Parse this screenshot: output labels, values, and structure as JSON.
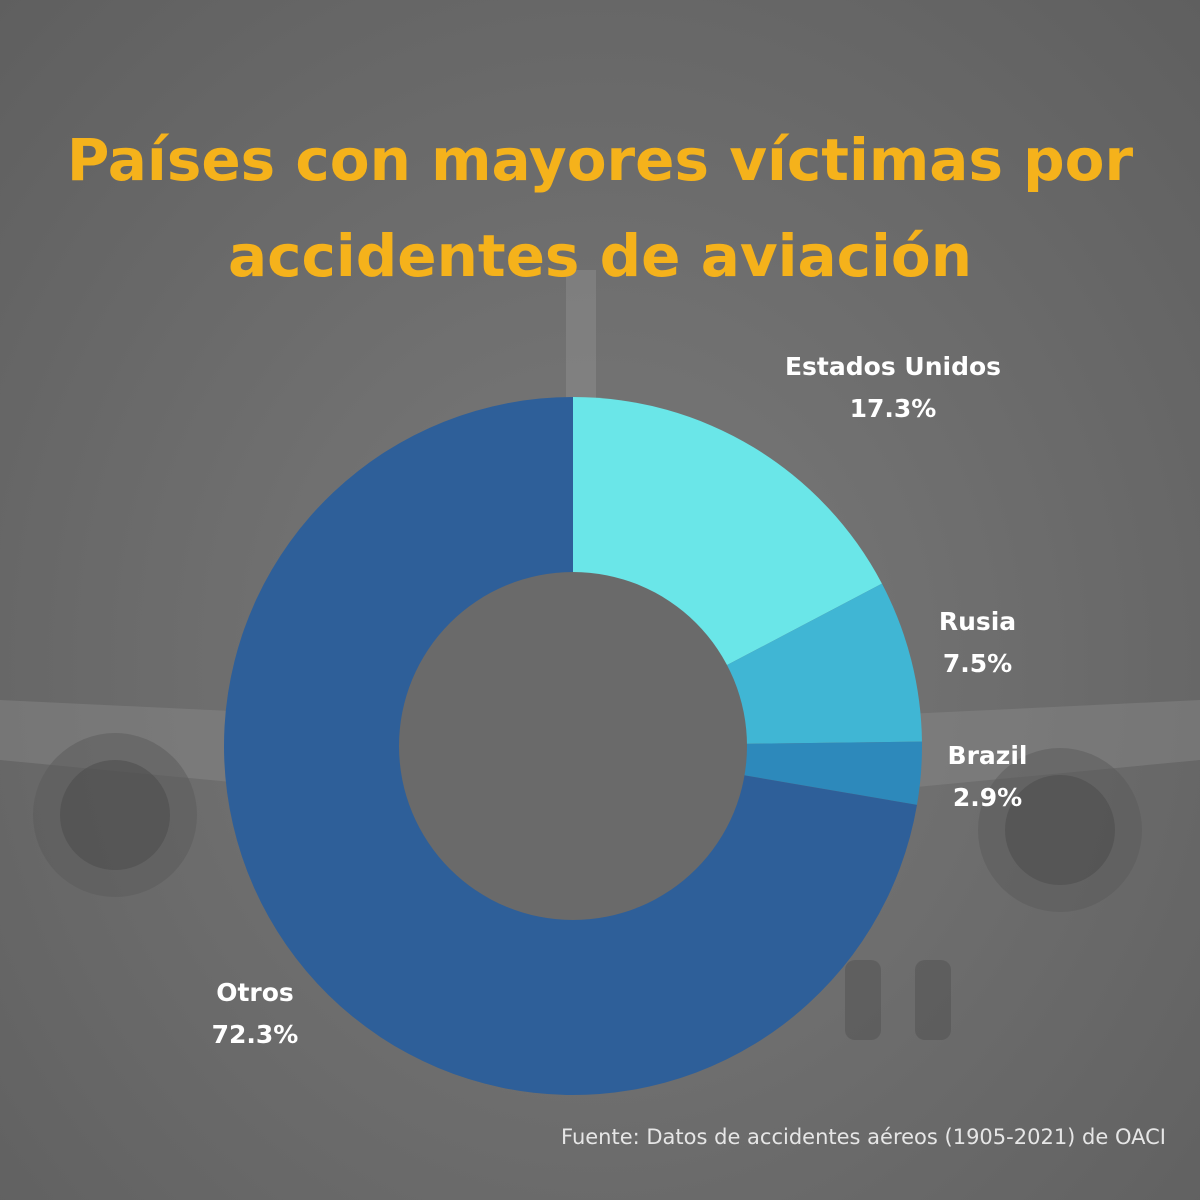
{
  "title_lines": [
    "Países con mayores víctimas por",
    "accidentes de aviación"
  ],
  "source": "Fuente: Datos de accidentes aéreos  (1905-2021) de OACI",
  "colors": {
    "title": "#f5b21b",
    "labels": "#ffffff",
    "background": "#6e6e6e"
  },
  "chart_data": {
    "type": "pie",
    "style": "donut",
    "unit": "%",
    "categories": [
      "Estados Unidos",
      "Rusia",
      "Brazil",
      "Otros"
    ],
    "values": [
      17.3,
      7.5,
      2.9,
      72.3
    ],
    "value_labels": [
      "17.3%",
      "7.5%",
      "2.9%",
      "72.3%"
    ],
    "colors": [
      "#6ae6e8",
      "#40b6d4",
      "#2d89bb",
      "#2e5f99"
    ],
    "start": "top, clockwise",
    "legend": "none (labels beside slices)"
  }
}
